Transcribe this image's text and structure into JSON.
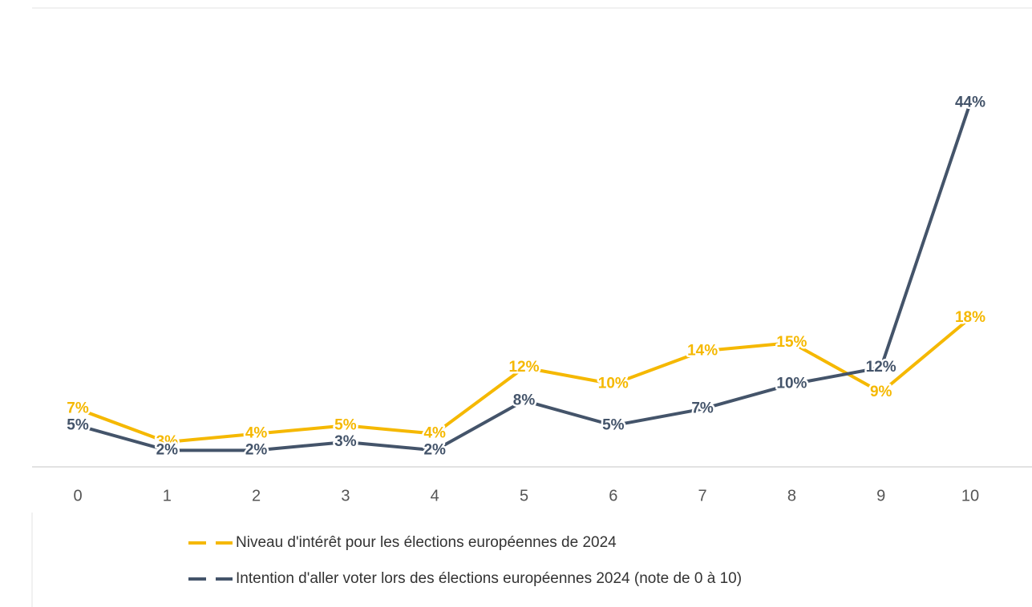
{
  "chart_data": {
    "type": "line",
    "categories": [
      "0",
      "1",
      "2",
      "3",
      "4",
      "5",
      "6",
      "7",
      "8",
      "9",
      "10"
    ],
    "series": [
      {
        "name": "Niveau d'intérêt pour les élections européennes de 2024",
        "color": "#f5b800",
        "values": [
          7,
          3,
          4,
          5,
          4,
          12,
          10,
          14,
          15,
          9,
          18
        ],
        "value_labels": [
          "7%",
          "3%",
          "4%",
          "5%",
          "4%",
          "12%",
          "10%",
          "14%",
          "15%",
          "9%",
          "18%"
        ]
      },
      {
        "name": "Intention d'aller voter lors des élections européennes 2024 (note de 0 à 10)",
        "color": "#44546a",
        "values": [
          5,
          2,
          2,
          3,
          2,
          8,
          5,
          7,
          10,
          12,
          44
        ],
        "value_labels": [
          "5%",
          "2%",
          "2%",
          "3%",
          "2%",
          "8%",
          "5%",
          "7%",
          "10%",
          "12%",
          "44%"
        ]
      }
    ],
    "ylim": [
      0,
      45
    ]
  }
}
